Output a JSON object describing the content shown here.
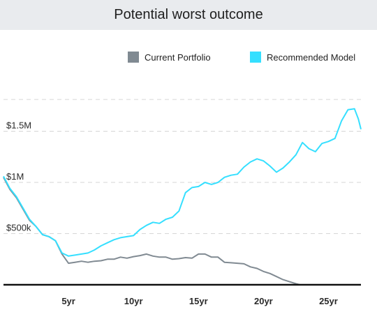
{
  "header": {
    "title": "Potential worst outcome"
  },
  "legend": [
    {
      "label": "Current Portfolio",
      "color": "#808a92"
    },
    {
      "label": "Recommended Model",
      "color": "#35dfff"
    }
  ],
  "chart_data": {
    "type": "line",
    "title": "Potential worst outcome",
    "xlabel": "",
    "ylabel": "",
    "x_ticks": [
      {
        "value": 5,
        "label": "5yr"
      },
      {
        "value": 10,
        "label": "10yr"
      },
      {
        "value": 15,
        "label": "15yr"
      },
      {
        "value": 20,
        "label": "20yr"
      },
      {
        "value": 25,
        "label": "25yr"
      }
    ],
    "y_ticks": [
      {
        "value": 500000,
        "label": "$500k"
      },
      {
        "value": 1000000,
        "label": "$1M"
      },
      {
        "value": 1500000,
        "label": "$1.5M"
      }
    ],
    "xlim": [
      0,
      27.5
    ],
    "ylim": [
      0,
      2000000
    ],
    "grid": true,
    "legend_position": "top-right",
    "series": [
      {
        "name": "Current Portfolio",
        "color": "#808a92",
        "points": [
          [
            0,
            1050000
          ],
          [
            0.5,
            930000
          ],
          [
            1,
            850000
          ],
          [
            1.5,
            740000
          ],
          [
            2,
            630000
          ],
          [
            2.5,
            570000
          ],
          [
            3,
            490000
          ],
          [
            3.5,
            470000
          ],
          [
            4,
            430000
          ],
          [
            4.5,
            300000
          ],
          [
            5,
            210000
          ],
          [
            5.5,
            220000
          ],
          [
            6,
            230000
          ],
          [
            6.5,
            220000
          ],
          [
            7,
            230000
          ],
          [
            7.5,
            235000
          ],
          [
            8,
            250000
          ],
          [
            8.5,
            250000
          ],
          [
            9,
            270000
          ],
          [
            9.5,
            260000
          ],
          [
            10,
            275000
          ],
          [
            10.5,
            285000
          ],
          [
            11,
            300000
          ],
          [
            11.5,
            280000
          ],
          [
            12,
            270000
          ],
          [
            12.5,
            270000
          ],
          [
            13,
            250000
          ],
          [
            13.5,
            255000
          ],
          [
            14,
            265000
          ],
          [
            14.5,
            260000
          ],
          [
            15,
            300000
          ],
          [
            15.5,
            300000
          ],
          [
            16,
            270000
          ],
          [
            16.5,
            270000
          ],
          [
            17,
            220000
          ],
          [
            17.5,
            215000
          ],
          [
            18,
            210000
          ],
          [
            18.5,
            205000
          ],
          [
            19,
            175000
          ],
          [
            19.5,
            160000
          ],
          [
            20,
            130000
          ],
          [
            20.5,
            110000
          ],
          [
            21,
            80000
          ],
          [
            21.5,
            50000
          ],
          [
            22,
            30000
          ],
          [
            22.5,
            10000
          ],
          [
            22.8,
            0
          ]
        ]
      },
      {
        "name": "Recommended Model",
        "color": "#35dfff",
        "points": [
          [
            0,
            1060000
          ],
          [
            0.5,
            940000
          ],
          [
            1,
            860000
          ],
          [
            1.5,
            750000
          ],
          [
            2,
            640000
          ],
          [
            2.5,
            570000
          ],
          [
            3,
            490000
          ],
          [
            3.5,
            470000
          ],
          [
            4,
            430000
          ],
          [
            4.5,
            310000
          ],
          [
            5,
            280000
          ],
          [
            5.5,
            290000
          ],
          [
            6,
            300000
          ],
          [
            6.5,
            310000
          ],
          [
            7,
            340000
          ],
          [
            7.5,
            380000
          ],
          [
            8,
            410000
          ],
          [
            8.5,
            440000
          ],
          [
            9,
            460000
          ],
          [
            9.5,
            470000
          ],
          [
            10,
            480000
          ],
          [
            10.5,
            540000
          ],
          [
            11,
            580000
          ],
          [
            11.5,
            610000
          ],
          [
            12,
            600000
          ],
          [
            12.5,
            640000
          ],
          [
            13,
            660000
          ],
          [
            13.5,
            720000
          ],
          [
            14,
            900000
          ],
          [
            14.5,
            950000
          ],
          [
            15,
            960000
          ],
          [
            15.5,
            1000000
          ],
          [
            16,
            980000
          ],
          [
            16.5,
            1000000
          ],
          [
            17,
            1050000
          ],
          [
            17.5,
            1070000
          ],
          [
            18,
            1080000
          ],
          [
            18.5,
            1150000
          ],
          [
            19,
            1200000
          ],
          [
            19.5,
            1230000
          ],
          [
            20,
            1210000
          ],
          [
            20.5,
            1160000
          ],
          [
            21,
            1100000
          ],
          [
            21.5,
            1140000
          ],
          [
            22,
            1200000
          ],
          [
            22.5,
            1270000
          ],
          [
            23,
            1390000
          ],
          [
            23.5,
            1330000
          ],
          [
            24,
            1300000
          ],
          [
            24.5,
            1380000
          ],
          [
            25,
            1400000
          ],
          [
            25.5,
            1430000
          ],
          [
            26,
            1600000
          ],
          [
            26.5,
            1710000
          ],
          [
            27,
            1720000
          ],
          [
            27.3,
            1620000
          ],
          [
            27.5,
            1520000
          ]
        ]
      }
    ]
  }
}
